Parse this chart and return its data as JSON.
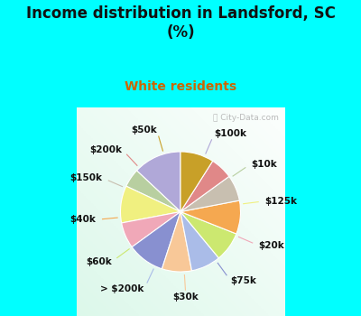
{
  "title": "Income distribution in Landsford, SC\n(%)",
  "subtitle": "White residents",
  "title_color": "#111111",
  "subtitle_color": "#cc6600",
  "bg_top_color": "#00ffff",
  "watermark": "ⓘ City-Data.com",
  "labels": [
    "$100k",
    "$10k",
    "$125k",
    "$20k",
    "$75k",
    "$30k",
    "> $200k",
    "$60k",
    "$40k",
    "$150k",
    "$200k",
    "$50k"
  ],
  "values": [
    13,
    5,
    10,
    7,
    10,
    8,
    8,
    8,
    9,
    7,
    6,
    9
  ],
  "colors": [
    "#b0a8d8",
    "#b8cfa0",
    "#f0f080",
    "#f0a8b8",
    "#8890d0",
    "#f8c898",
    "#aabce8",
    "#cce870",
    "#f5a850",
    "#c8bfb0",
    "#e08888",
    "#c8a028"
  ],
  "line_colors": [
    "#b0a8d8",
    "#b8cfa0",
    "#f0f080",
    "#f0a8b8",
    "#8890d0",
    "#f8c898",
    "#aabce8",
    "#cce870",
    "#f5a850",
    "#c8bfb0",
    "#e08888",
    "#c8a028"
  ],
  "title_fontsize": 12,
  "subtitle_fontsize": 10,
  "label_fontsize": 7.5
}
